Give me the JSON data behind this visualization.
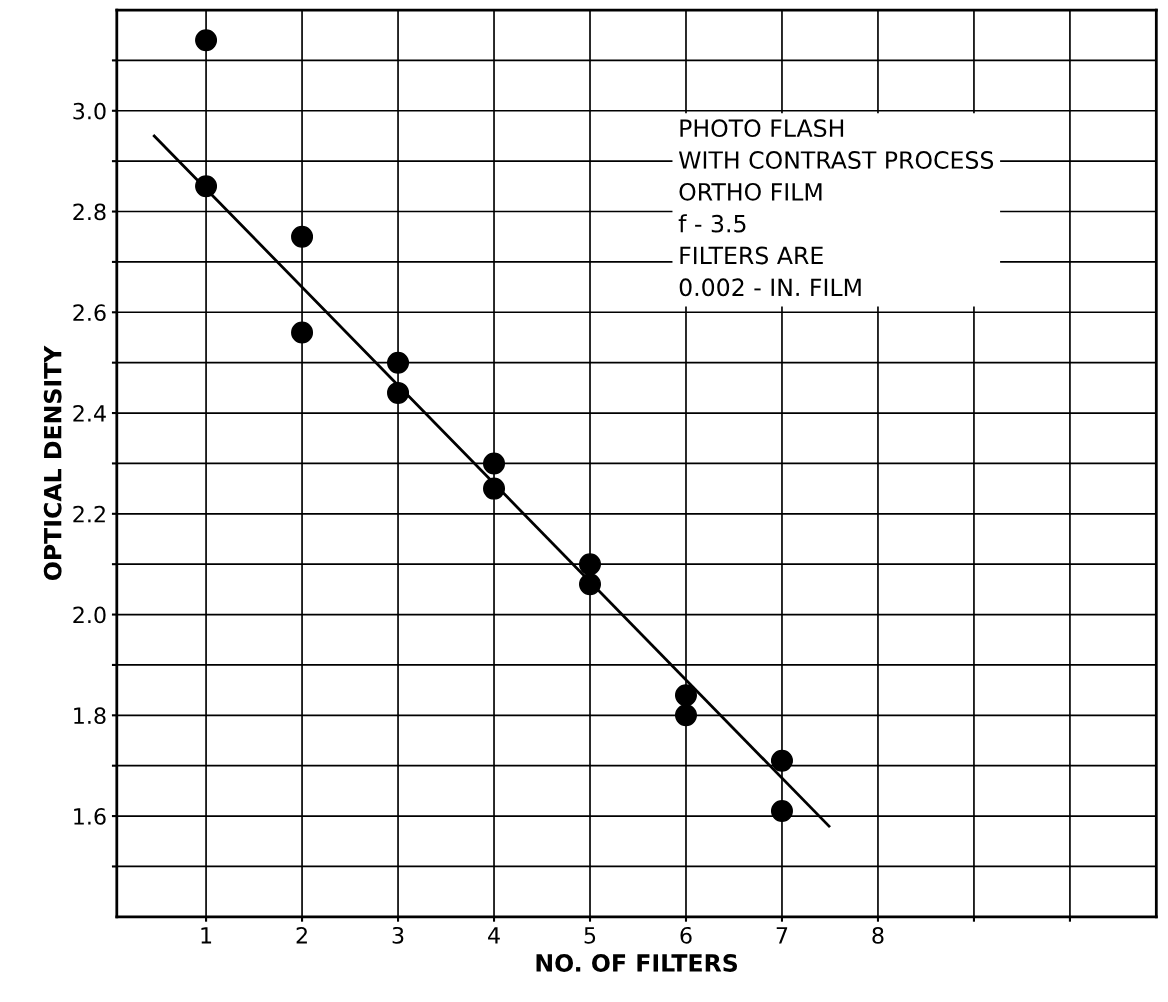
{
  "chart_data": {
    "type": "scatter",
    "xlabel": "NO. OF FILTERS",
    "ylabel": "OPTICAL DENSITY",
    "annotations": [
      "PHOTO FLASH\nWITH CONTRAST PROCESS\nORTHO FILM\nf - 3.5\nFILTERS ARE\n0.002 - IN. FILM"
    ],
    "xlim": [
      0.07,
      10.9
    ],
    "ylim": [
      1.4,
      3.2
    ],
    "xticks": [
      {
        "value": 1,
        "label": "1"
      },
      2,
      3,
      4,
      5,
      6,
      7,
      8,
      {
        "value": 9,
        "label": null
      },
      {
        "value": 10,
        "label": null
      }
    ],
    "yticks": [
      {
        "value": 1.5,
        "label": null
      },
      1.6,
      {
        "value": 1.7,
        "label": null
      },
      1.8,
      {
        "value": 1.9,
        "label": null
      },
      {
        "value": 2.0,
        "label": "2.0"
      },
      {
        "value": 2.1,
        "label": null
      },
      2.2,
      {
        "value": 2.3,
        "label": null
      },
      2.4,
      {
        "value": 2.5,
        "label": null
      },
      2.6,
      {
        "value": 2.7,
        "label": null
      },
      2.8,
      {
        "value": 2.9,
        "label": null
      },
      {
        "value": 3.0,
        "label": "3.0"
      },
      {
        "value": 3.1,
        "label": null
      }
    ],
    "grid": true,
    "marker": "circle",
    "series": [
      {
        "color": "#000000",
        "x": [
          1,
          1,
          2,
          2,
          3,
          3,
          4,
          4,
          5,
          5,
          6,
          6,
          7,
          7
        ],
        "values": [
          3.14,
          2.85,
          2.75,
          2.56,
          2.5,
          2.44,
          2.3,
          2.25,
          2.1,
          2.06,
          1.84,
          1.8,
          1.71,
          1.61
        ]
      },
      {
        "type": "line",
        "color": "#000000",
        "marker": "none",
        "x": [
          0.46,
          7.49
        ],
        "values": [
          2.95,
          1.58
        ]
      }
    ]
  }
}
